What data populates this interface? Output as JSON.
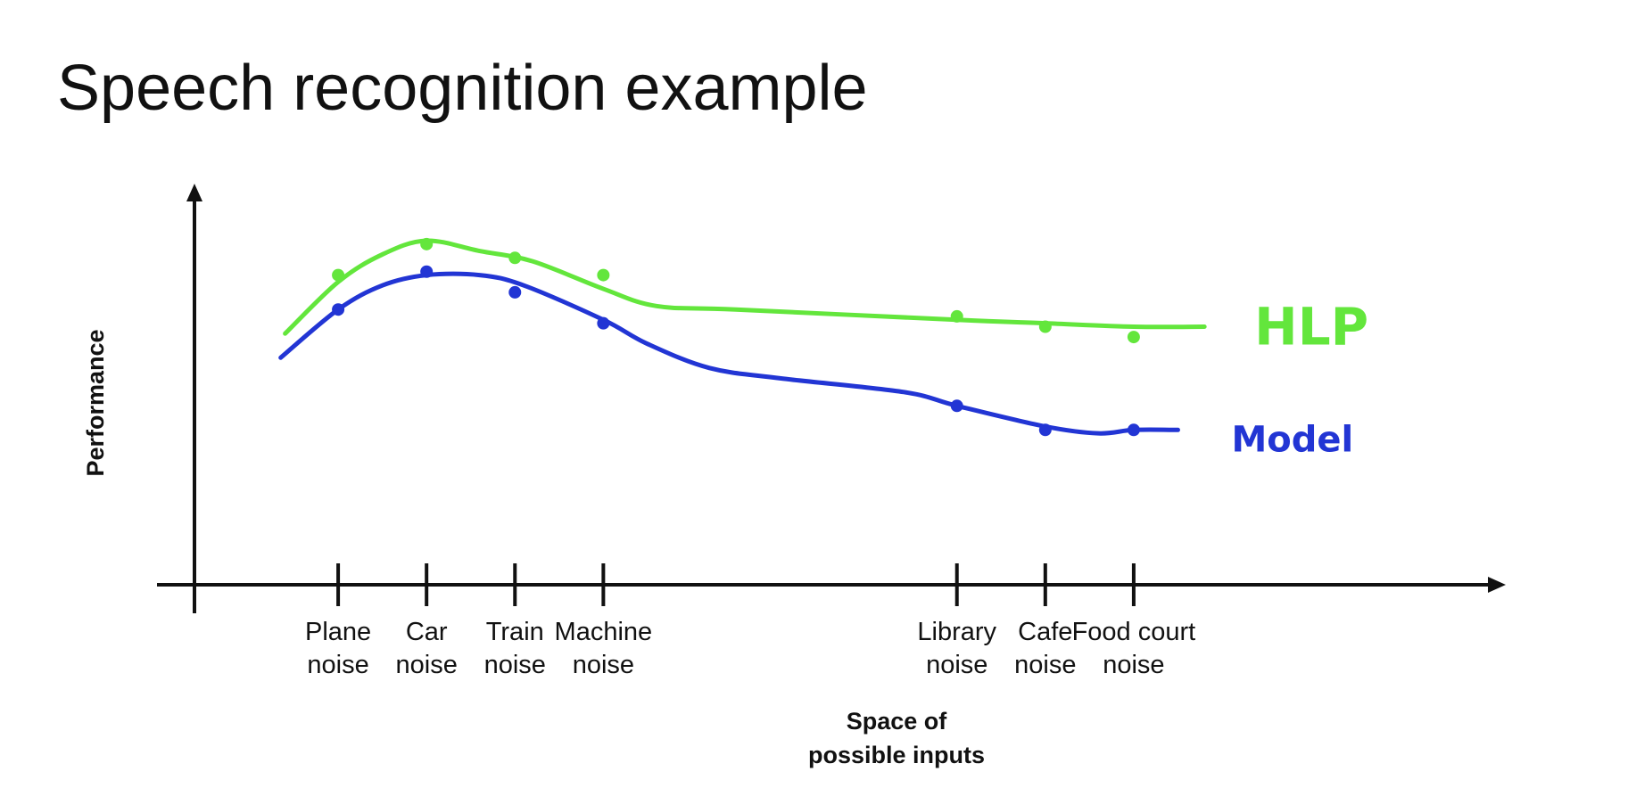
{
  "slide": {
    "title": "Speech recognition example"
  },
  "chart_data": {
    "type": "line",
    "title": "Speech recognition example",
    "xlabel": "Space of possible inputs",
    "ylabel": "Performance",
    "ylim": [
      0,
      100
    ],
    "grid": false,
    "legend": "labels at right end of lines",
    "categories": [
      {
        "label": [
          "Plane",
          "noise"
        ],
        "x": 1
      },
      {
        "label": [
          "Car",
          "noise"
        ],
        "x": 2
      },
      {
        "label": [
          "Train",
          "noise"
        ],
        "x": 3
      },
      {
        "label": [
          "Machine",
          "noise"
        ],
        "x": 4
      },
      {
        "label": [
          "Library",
          "noise"
        ],
        "x": 8
      },
      {
        "label": [
          "Cafe",
          "noise"
        ],
        "x": 9
      },
      {
        "label": [
          "Food court",
          "noise"
        ],
        "x": 10
      }
    ],
    "series": [
      {
        "name": "HLP",
        "color": "#63e63c",
        "points": [
          [
            1,
            90
          ],
          [
            2,
            99
          ],
          [
            3,
            95
          ],
          [
            4,
            90
          ],
          [
            8,
            78
          ],
          [
            9,
            75
          ],
          [
            10,
            72
          ]
        ],
        "curve": [
          [
            0.4,
            73
          ],
          [
            1,
            88
          ],
          [
            1.5,
            96
          ],
          [
            2,
            100
          ],
          [
            2.6,
            97
          ],
          [
            3.2,
            94
          ],
          [
            4,
            86
          ],
          [
            4.6,
            81
          ],
          [
            5.5,
            80
          ],
          [
            8,
            77
          ],
          [
            9,
            76
          ],
          [
            10,
            75
          ],
          [
            10.8,
            75
          ]
        ]
      },
      {
        "name": "Model",
        "color": "#2235d4",
        "points": [
          [
            1,
            80
          ],
          [
            2,
            91
          ],
          [
            3,
            85
          ],
          [
            4,
            76
          ],
          [
            8,
            52
          ],
          [
            9,
            45
          ],
          [
            10,
            45
          ]
        ],
        "curve": [
          [
            0.35,
            66
          ],
          [
            1,
            80
          ],
          [
            1.5,
            87
          ],
          [
            2,
            90
          ],
          [
            2.6,
            90
          ],
          [
            3.1,
            87
          ],
          [
            4,
            77
          ],
          [
            4.5,
            70
          ],
          [
            5.2,
            63
          ],
          [
            6,
            60
          ],
          [
            7.4,
            56
          ],
          [
            8,
            52
          ],
          [
            9,
            46
          ],
          [
            9.6,
            44
          ],
          [
            10,
            45
          ],
          [
            10.5,
            45
          ]
        ]
      }
    ]
  }
}
